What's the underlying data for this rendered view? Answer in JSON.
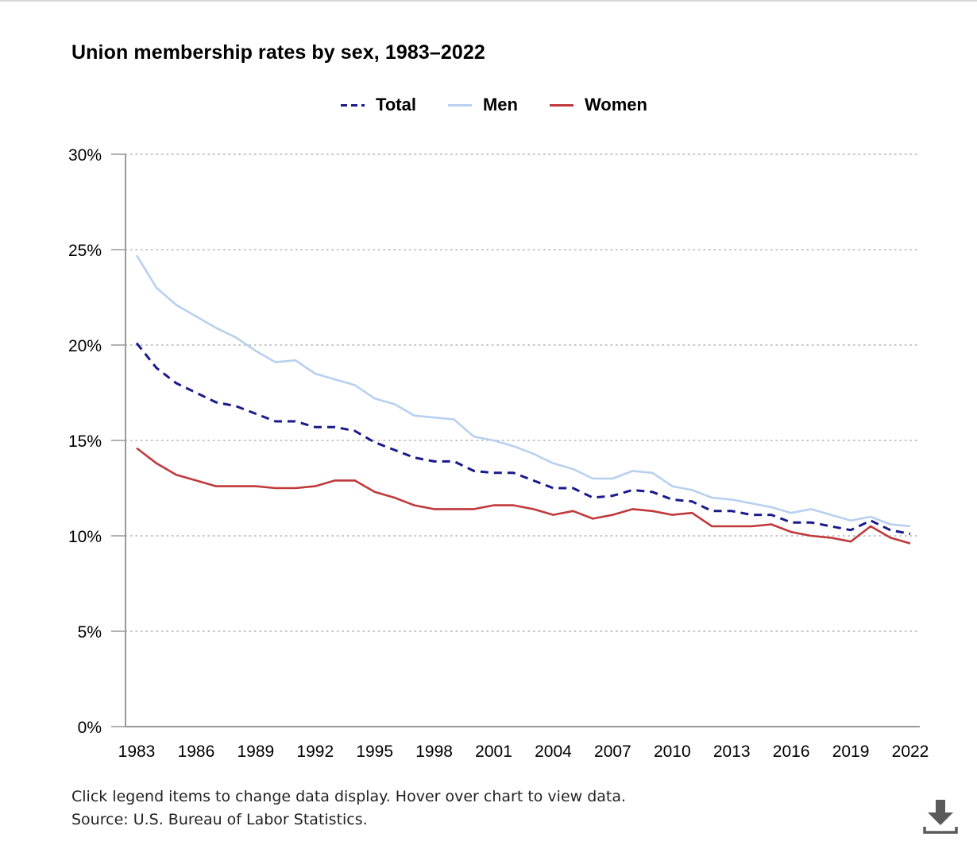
{
  "chart_data": {
    "type": "line",
    "title": "Union membership rates by sex, 1983–2022",
    "xlabel": "",
    "ylabel": "",
    "x": [
      1983,
      1984,
      1985,
      1986,
      1987,
      1988,
      1989,
      1990,
      1991,
      1992,
      1993,
      1994,
      1995,
      1996,
      1997,
      1998,
      1999,
      2000,
      2001,
      2002,
      2003,
      2004,
      2005,
      2006,
      2007,
      2008,
      2009,
      2010,
      2011,
      2012,
      2013,
      2014,
      2015,
      2016,
      2017,
      2018,
      2019,
      2020,
      2021,
      2022
    ],
    "x_ticks": [
      "1983",
      "1986",
      "1989",
      "1992",
      "1995",
      "1998",
      "2001",
      "2004",
      "2007",
      "2010",
      "2013",
      "2016",
      "2019",
      "2022"
    ],
    "ylim": [
      0,
      30
    ],
    "y_ticks": [
      "0%",
      "5%",
      "10%",
      "15%",
      "20%",
      "25%",
      "30%"
    ],
    "grid": "horizontal dotted",
    "legend_position": "top-center",
    "series": [
      {
        "name": "Total",
        "style": "dashed",
        "color": "#1a1a8c",
        "values": [
          20.1,
          18.8,
          18.0,
          17.5,
          17.0,
          16.8,
          16.4,
          16.0,
          16.0,
          15.7,
          15.7,
          15.5,
          14.9,
          14.5,
          14.1,
          13.9,
          13.9,
          13.4,
          13.3,
          13.3,
          12.9,
          12.5,
          12.5,
          12.0,
          12.1,
          12.4,
          12.3,
          11.9,
          11.8,
          11.3,
          11.3,
          11.1,
          11.1,
          10.7,
          10.7,
          10.5,
          10.3,
          10.8,
          10.3,
          10.1
        ]
      },
      {
        "name": "Men",
        "style": "solid",
        "color": "#b8d0f0",
        "values": [
          24.7,
          23.0,
          22.1,
          21.5,
          20.9,
          20.4,
          19.7,
          19.1,
          19.2,
          18.5,
          18.2,
          17.9,
          17.2,
          16.9,
          16.3,
          16.2,
          16.1,
          15.2,
          15.0,
          14.7,
          14.3,
          13.8,
          13.5,
          13.0,
          13.0,
          13.4,
          13.3,
          12.6,
          12.4,
          12.0,
          11.9,
          11.7,
          11.5,
          11.2,
          11.4,
          11.1,
          10.8,
          11.0,
          10.6,
          10.5
        ]
      },
      {
        "name": "Women",
        "style": "solid",
        "color": "#c0393b",
        "values": [
          14.6,
          13.8,
          13.2,
          12.9,
          12.6,
          12.6,
          12.6,
          12.5,
          12.5,
          12.6,
          12.9,
          12.9,
          12.3,
          12.0,
          11.6,
          11.4,
          11.4,
          11.4,
          11.6,
          11.6,
          11.4,
          11.1,
          11.3,
          10.9,
          11.1,
          11.4,
          11.3,
          11.1,
          11.2,
          10.5,
          10.5,
          10.5,
          10.6,
          10.2,
          10.0,
          9.9,
          9.7,
          10.5,
          9.9,
          9.6
        ]
      }
    ]
  },
  "notes": {
    "line1": "Click legend items to change data display. Hover over chart to view data.",
    "line2": "Source: U.S. Bureau of Labor Statistics."
  },
  "icons": {
    "download": "download-icon"
  },
  "colors": {
    "axis": "#999999",
    "grid": "#b3b3b3"
  }
}
